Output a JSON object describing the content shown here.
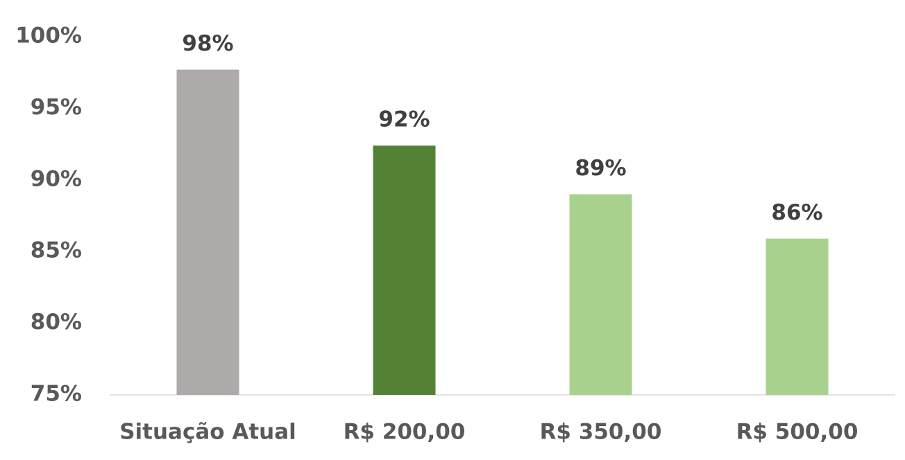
{
  "chart_data": {
    "type": "bar",
    "categories": [
      "Situação Atual",
      "R$ 200,00",
      "R$ 350,00",
      "R$ 500,00"
    ],
    "values": [
      97.7,
      92.4,
      89.0,
      85.9
    ],
    "value_labels": [
      "98%",
      "92%",
      "89%",
      "86%"
    ],
    "colors": [
      "#aeaaaa",
      "#548235",
      "#a9d18e",
      "#a9d18e"
    ],
    "ylim": [
      75,
      100
    ],
    "yticks": [
      {
        "value": 75,
        "label": "75%"
      },
      {
        "value": 80,
        "label": "80%"
      },
      {
        "value": 85,
        "label": "85%"
      },
      {
        "value": 90,
        "label": "90%"
      },
      {
        "value": 95,
        "label": "95%"
      },
      {
        "value": 100,
        "label": "100%"
      }
    ],
    "grid": false
  }
}
